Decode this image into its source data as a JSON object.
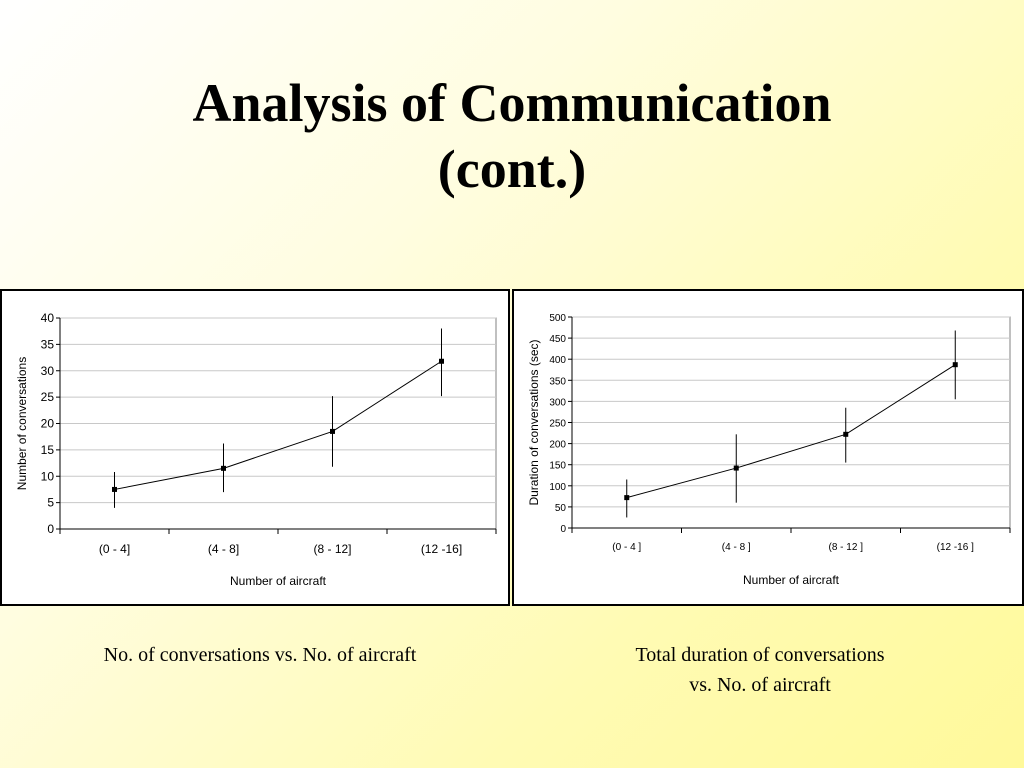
{
  "slide": {
    "title_line1": "Analysis of Communication",
    "title_line2": "(cont.)"
  },
  "captions": {
    "left": "No. of conversations vs. No. of aircraft",
    "right_line1": "Total duration of conversations",
    "right_line2": "vs. No. of aircraft"
  },
  "chart_data": [
    {
      "type": "line",
      "title": "",
      "xlabel": "Number of aircraft",
      "ylabel": "Number of conversations",
      "categories": [
        "(0 - 4]",
        "(4 - 8]",
        "(8 - 12]",
        "(12 -16]"
      ],
      "values": [
        7.5,
        11.5,
        18.5,
        31.8
      ],
      "error_low": [
        4,
        7,
        11.8,
        25.2
      ],
      "error_high": [
        10.8,
        16.2,
        25.2,
        38
      ],
      "yticks": [
        0,
        5,
        10,
        15,
        20,
        25,
        30,
        35,
        40
      ],
      "ylim": [
        0,
        40
      ],
      "grid": true,
      "legend": "none",
      "line_color": "#000000"
    },
    {
      "type": "line",
      "title": "",
      "xlabel": "Number of aircraft",
      "ylabel": "Duration of conversations (sec)",
      "categories": [
        "(0 - 4 ]",
        "(4 - 8 ]",
        "(8 - 12 ]",
        "(12 -16 ]"
      ],
      "values": [
        72,
        142,
        222,
        387
      ],
      "error_low": [
        25,
        60,
        155,
        305
      ],
      "error_high": [
        115,
        222,
        285,
        468
      ],
      "yticks": [
        0,
        50,
        100,
        150,
        200,
        250,
        300,
        350,
        400,
        450,
        500
      ],
      "ylim": [
        0,
        500
      ],
      "grid": true,
      "legend": "none",
      "line_color": "#000000"
    }
  ]
}
